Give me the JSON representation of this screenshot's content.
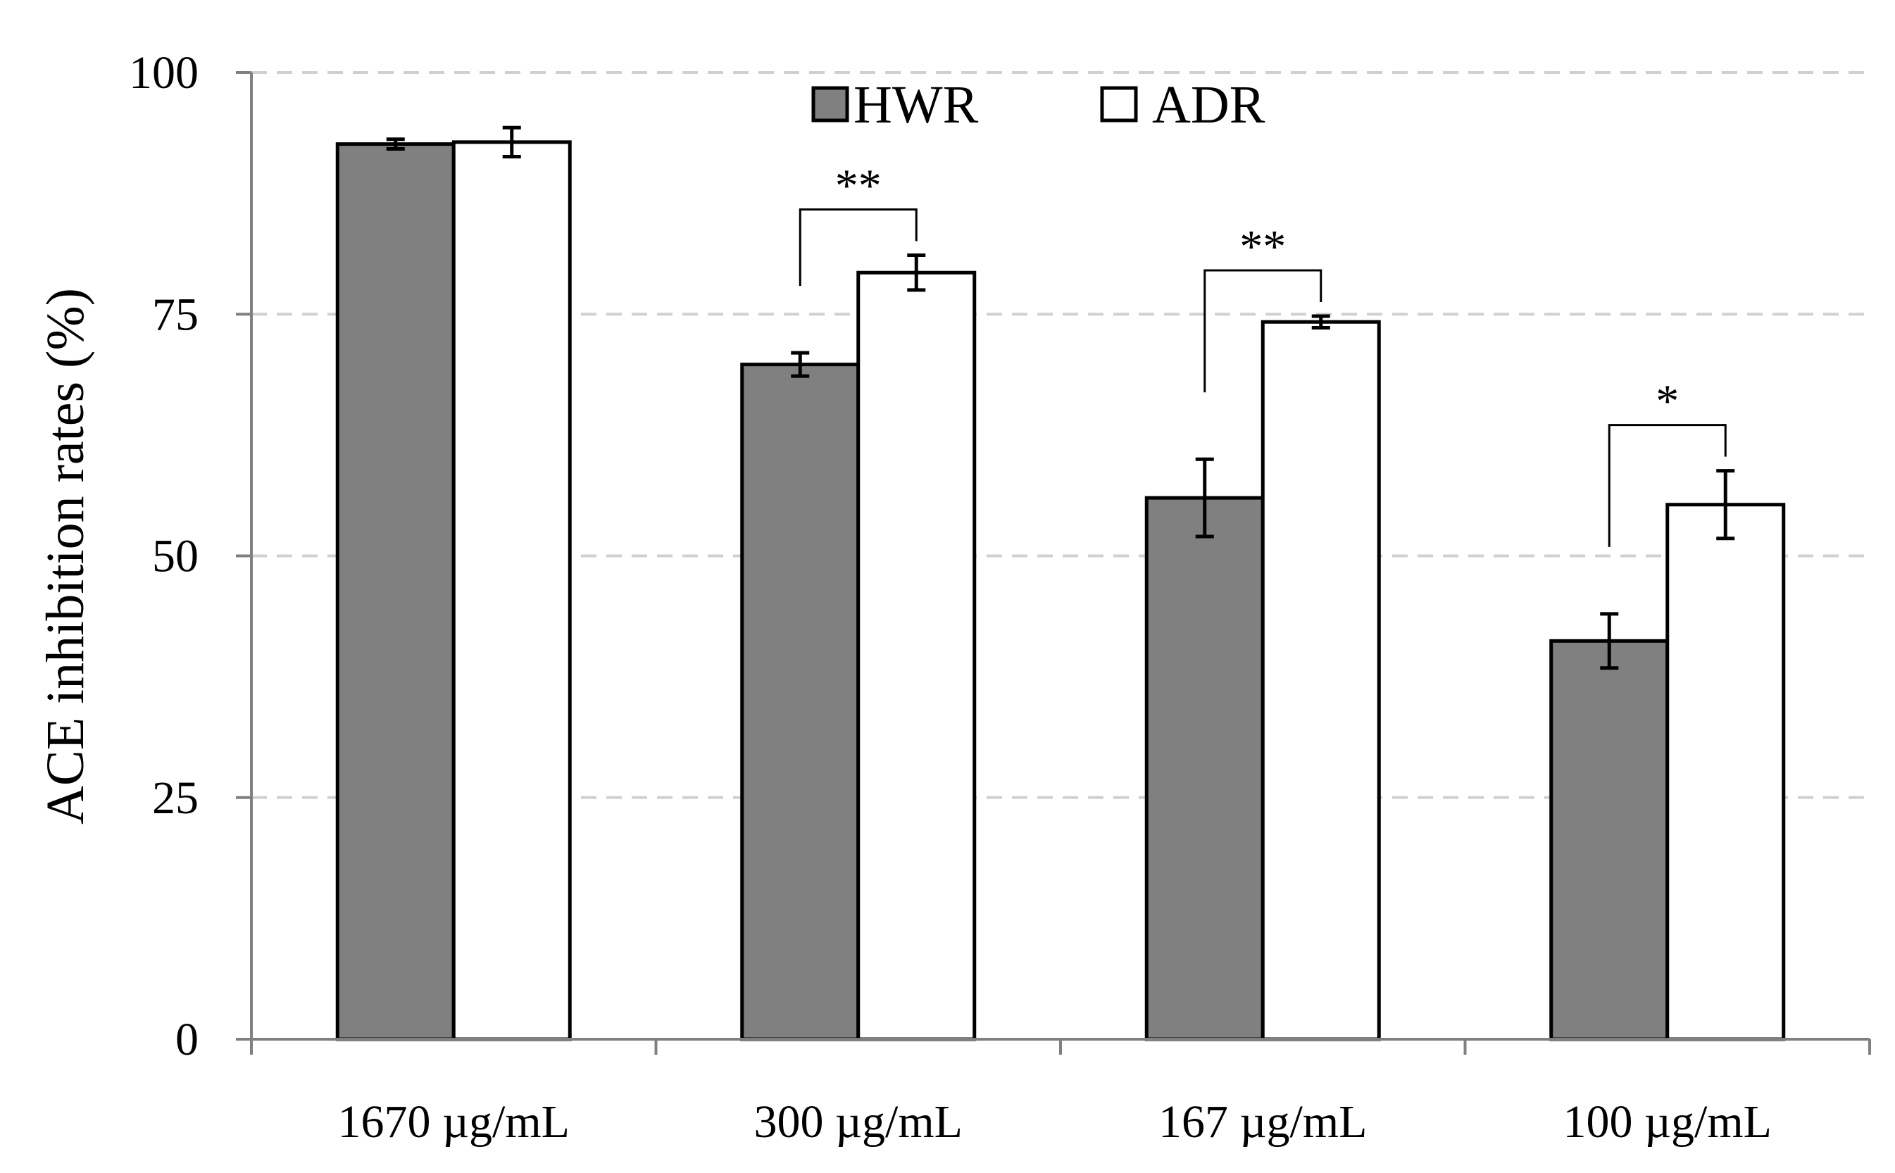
{
  "chart_data": {
    "type": "bar",
    "categories": [
      "1670 µg/mL",
      "300 µg/mL",
      "167 µg/mL",
      "100 µg/mL"
    ],
    "series": [
      {
        "name": "HWR",
        "color": "#808080",
        "values": [
          92.6,
          69.8,
          56.0,
          41.2
        ],
        "errors": [
          0.5,
          1.2,
          4.0,
          2.8
        ]
      },
      {
        "name": "ADR",
        "color": "#ffffff",
        "values": [
          92.8,
          79.3,
          74.2,
          55.3
        ],
        "errors": [
          1.5,
          1.8,
          0.6,
          3.5
        ]
      }
    ],
    "ylabel": "ACE inhibition rates (%)",
    "xlabel": "",
    "ylim": [
      0,
      100
    ],
    "yticks": [
      0,
      25,
      50,
      75,
      100
    ],
    "ytick_labels": [
      "0",
      "25",
      "50",
      "75",
      "100"
    ],
    "grid": "horizontal dashed",
    "legend_position": "top-center",
    "significance": [
      {
        "category_index": 1,
        "label": "**"
      },
      {
        "category_index": 2,
        "label": "**"
      },
      {
        "category_index": 3,
        "label": "*"
      }
    ]
  }
}
